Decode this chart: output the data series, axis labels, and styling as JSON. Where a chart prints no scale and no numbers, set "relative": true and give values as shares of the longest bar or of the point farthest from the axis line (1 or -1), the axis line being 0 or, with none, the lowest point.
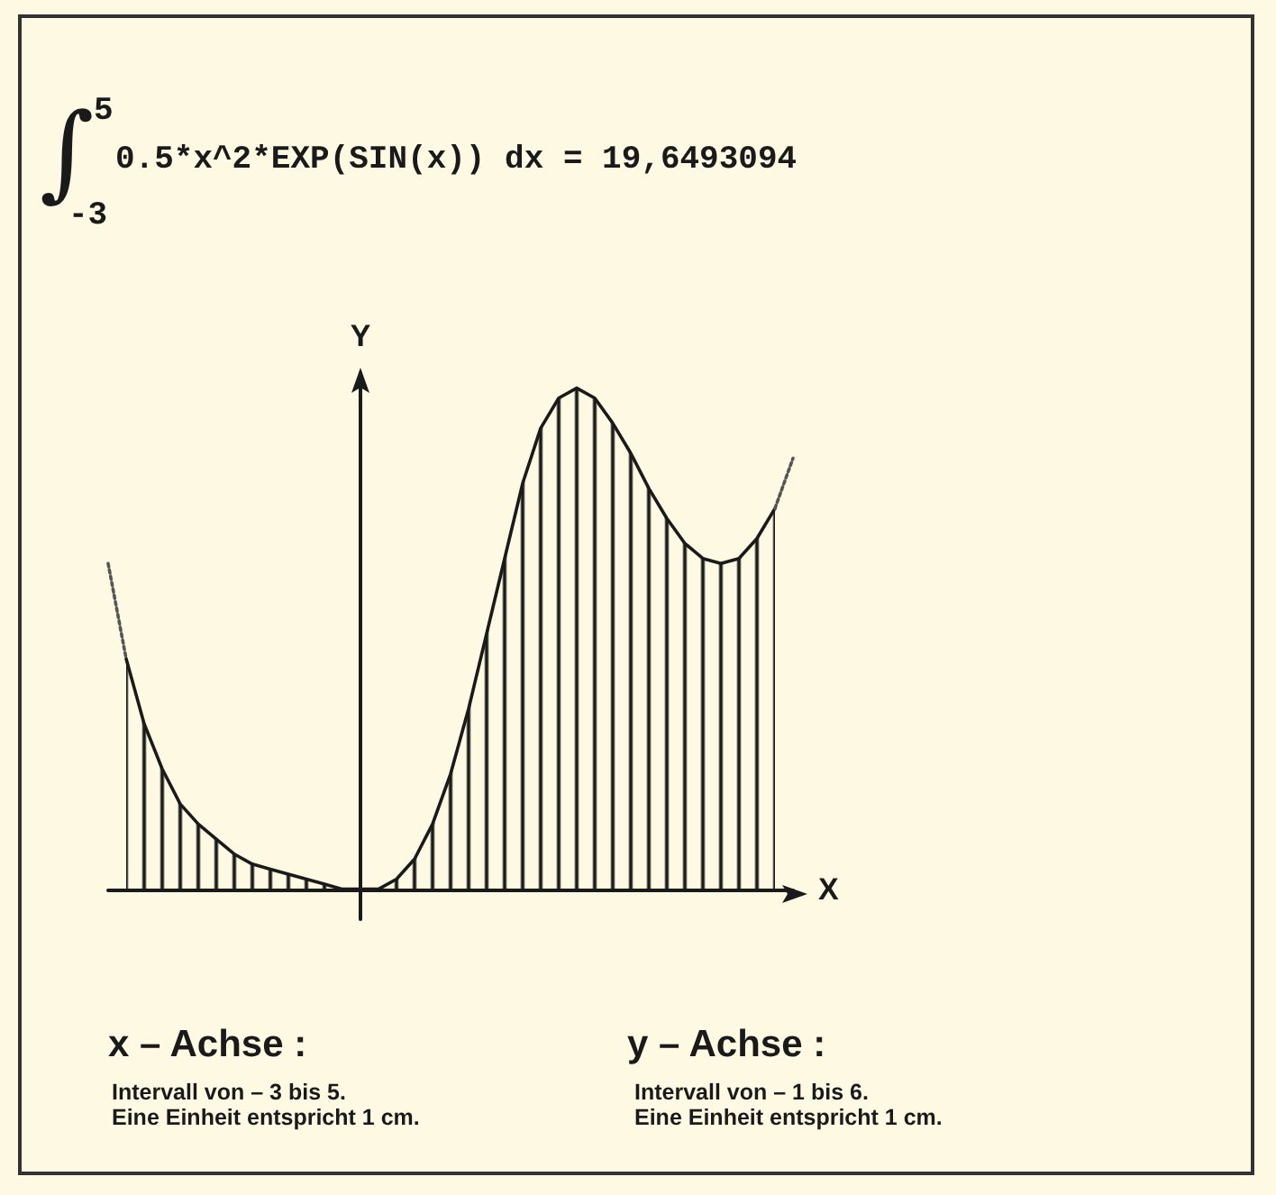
{
  "chart_data": {
    "type": "area",
    "title": "0.5*x^2*EXP(SIN(x)) dx = 19,6493094",
    "xlabel": "X",
    "ylabel": "Y",
    "annotations": [
      "∫",
      "5",
      "-3",
      "x – Achse :",
      "Intervall von – 3 bis 5.",
      "Eine Einheit entspricht 1 cm.",
      "y – Achse :",
      "Intervall von – 1 bis 6.",
      "Eine Einheit entspricht 1 cm."
    ],
    "relative": true,
    "categories": [
      null,
      null,
      null,
      null,
      null,
      null,
      null,
      null,
      null,
      null,
      null,
      null,
      null,
      null,
      null,
      null,
      null,
      null,
      null,
      null,
      null,
      null,
      null,
      null,
      null,
      null,
      null,
      null,
      null,
      null,
      null,
      null,
      null,
      null,
      null,
      null,
      null,
      null,
      null
    ],
    "series": [
      {
        "color": "#1a1a1a",
        "line_style": "solid",
        "values": [
          null,
          0.46,
          0.33,
          0.24,
          0.17,
          0.13,
          0.1,
          0.07,
          0.05,
          0.04,
          0.03,
          0.02,
          0.01,
          0.0,
          0.0,
          0.0,
          0.02,
          0.06,
          0.13,
          0.23,
          0.36,
          0.51,
          0.66,
          0.81,
          0.92,
          0.98,
          1,
          0.98,
          0.93,
          0.87,
          0.8,
          0.74,
          0.69,
          0.66,
          0.65,
          0.66,
          0.7,
          0.76,
          null
        ]
      },
      {
        "type": "line",
        "color": "#555555",
        "line_style": "dotted",
        "values": [
          0.65,
          0.46,
          null,
          null,
          null,
          null,
          null,
          null,
          null,
          null,
          null,
          null,
          null,
          null,
          null,
          null,
          null,
          null,
          null,
          null,
          null,
          null,
          null,
          null,
          null,
          null,
          null,
          null,
          null,
          null,
          null,
          null,
          null,
          null,
          null,
          null,
          null,
          null,
          null
        ]
      },
      {
        "type": "line",
        "color": "#555555",
        "line_style": "dotted",
        "values": [
          null,
          null,
          null,
          null,
          null,
          null,
          null,
          null,
          null,
          null,
          null,
          null,
          null,
          null,
          null,
          null,
          null,
          null,
          null,
          null,
          null,
          null,
          null,
          null,
          null,
          null,
          null,
          null,
          null,
          null,
          null,
          null,
          null,
          null,
          null,
          null,
          null,
          0.76,
          0.86
        ]
      }
    ],
    "grid": false,
    "marker": "none"
  }
}
